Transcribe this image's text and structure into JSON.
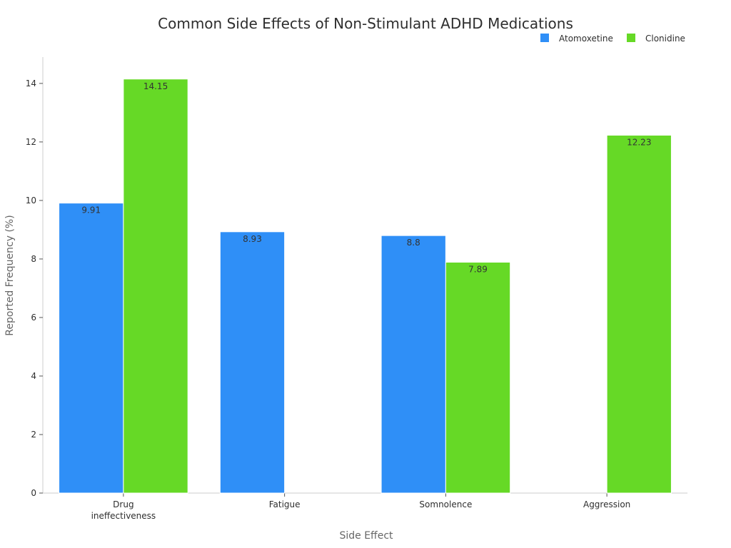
{
  "chart_data": {
    "type": "bar",
    "title": "Common Side Effects of Non-Stimulant ADHD Medications",
    "xlabel": "Side Effect",
    "ylabel": "Reported Frequency (%)",
    "categories": [
      [
        "Drug",
        "ineffectiveness"
      ],
      [
        "Fatigue"
      ],
      [
        "Somnolence"
      ],
      [
        "Aggression"
      ]
    ],
    "series": [
      {
        "name": "Atomoxetine",
        "color": "#2f8ff7",
        "values": [
          9.91,
          8.93,
          8.8,
          null
        ]
      },
      {
        "name": "Clonidine",
        "color": "#66d926",
        "values": [
          14.15,
          null,
          7.89,
          12.23
        ]
      }
    ],
    "ylim": [
      0,
      14.9
    ],
    "yticks": [
      0,
      2,
      4,
      6,
      8,
      10,
      12,
      14
    ],
    "legend_position": "top-right",
    "grid": false
  }
}
